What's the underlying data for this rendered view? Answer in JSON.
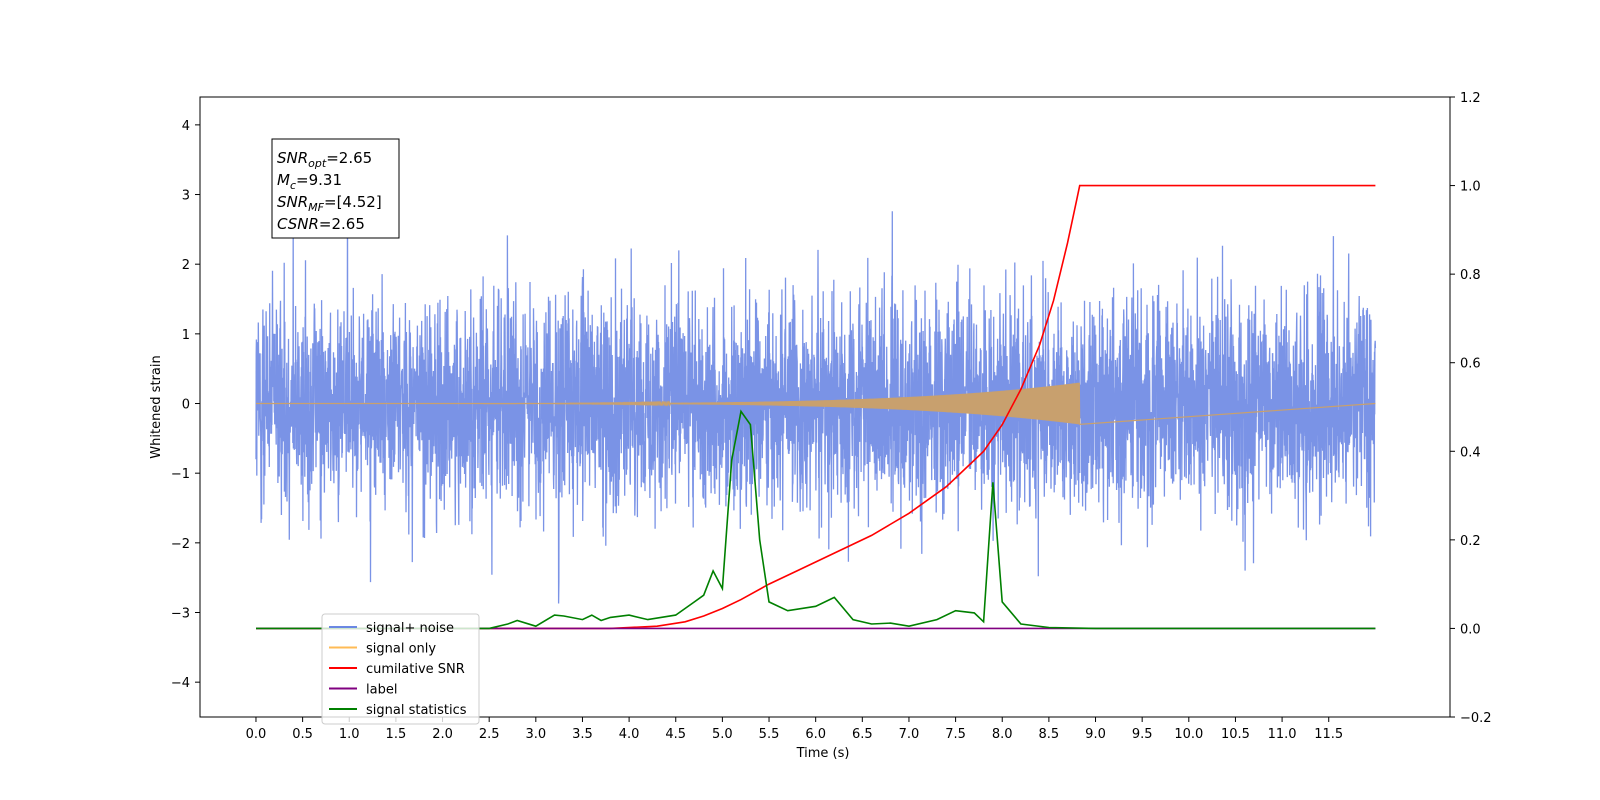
{
  "chart_data": {
    "type": "line",
    "xlabel": "Time (s)",
    "ylabel": "Whitened strain",
    "xlim": [
      -0.6,
      12.8
    ],
    "ylim": [
      -4.5,
      4.4
    ],
    "y2lim": [
      -0.2,
      1.2
    ],
    "xticks": [
      "0.0",
      "0.5",
      "1.0",
      "1.5",
      "2.0",
      "2.5",
      "3.0",
      "3.5",
      "4.0",
      "4.5",
      "5.0",
      "5.5",
      "6.0",
      "6.5",
      "7.0",
      "7.5",
      "8.0",
      "8.5",
      "9.0",
      "9.5",
      "10.0",
      "10.5",
      "11.0",
      "11.5"
    ],
    "yticks": [
      "4",
      "3",
      "2",
      "1",
      "0",
      "−1",
      "−2",
      "−3",
      "−4"
    ],
    "y2ticks": [
      "1.2",
      "1.0",
      "0.8",
      "0.6",
      "0.4",
      "0.2",
      "0.0",
      "−0.2"
    ],
    "legend_position": "lower-left",
    "annotation": {
      "lines": [
        {
          "sym": "SNR",
          "sub": "opt",
          "val": "=2.65"
        },
        {
          "sym": "M",
          "sub": "c",
          "val": "=9.31"
        },
        {
          "sym": "SNR",
          "sub": "MF",
          "val": "=[4.52]"
        },
        {
          "sym": "CSNR",
          "sub": "",
          "val": "=2.65"
        }
      ]
    },
    "series": [
      {
        "name": "signal+ noise",
        "color": "#6b87e3",
        "axis": "left",
        "kind": "noise",
        "x_range": [
          0,
          12
        ],
        "amplitude": 3.4
      },
      {
        "name": "signal only",
        "color": "#ffbb55",
        "axis": "left",
        "kind": "chirp",
        "x_range": [
          0,
          8.83
        ],
        "envelope_max": 0.3
      },
      {
        "name": "cumilative SNR",
        "color": "#ff0000",
        "axis": "right",
        "kind": "line",
        "x": [
          0,
          3.8,
          4.3,
          4.6,
          4.8,
          5.0,
          5.2,
          5.5,
          5.8,
          6.2,
          6.6,
          7.0,
          7.4,
          7.8,
          8.0,
          8.2,
          8.4,
          8.55,
          8.7,
          8.8,
          8.83,
          9.0,
          10.0,
          11.0,
          12.0
        ],
        "y": [
          0,
          0,
          0.005,
          0.015,
          0.028,
          0.045,
          0.065,
          0.1,
          0.13,
          0.17,
          0.21,
          0.26,
          0.32,
          0.4,
          0.46,
          0.54,
          0.64,
          0.74,
          0.87,
          0.97,
          1.0,
          1.0,
          1.0,
          1.0,
          1.0
        ]
      },
      {
        "name": "label",
        "color": "#800080",
        "axis": "right",
        "kind": "line",
        "x": [
          0,
          12
        ],
        "y": [
          0,
          0
        ]
      },
      {
        "name": "signal statistics",
        "color": "#008000",
        "axis": "right",
        "kind": "line",
        "x": [
          0,
          2.5,
          2.7,
          2.8,
          3.0,
          3.2,
          3.3,
          3.5,
          3.6,
          3.7,
          3.8,
          4.0,
          4.2,
          4.5,
          4.7,
          4.8,
          4.9,
          5.0,
          5.1,
          5.2,
          5.3,
          5.4,
          5.5,
          5.7,
          6.0,
          6.2,
          6.4,
          6.6,
          6.8,
          7.0,
          7.3,
          7.5,
          7.7,
          7.8,
          7.9,
          8.0,
          8.2,
          8.5,
          9.0,
          12.0
        ],
        "y": [
          0,
          0,
          0.01,
          0.018,
          0.005,
          0.03,
          0.028,
          0.02,
          0.03,
          0.018,
          0.025,
          0.03,
          0.02,
          0.03,
          0.06,
          0.075,
          0.13,
          0.09,
          0.38,
          0.49,
          0.46,
          0.2,
          0.06,
          0.04,
          0.05,
          0.07,
          0.02,
          0.01,
          0.012,
          0.005,
          0.02,
          0.04,
          0.035,
          0.015,
          0.33,
          0.06,
          0.01,
          0.002,
          0,
          0
        ]
      }
    ]
  }
}
